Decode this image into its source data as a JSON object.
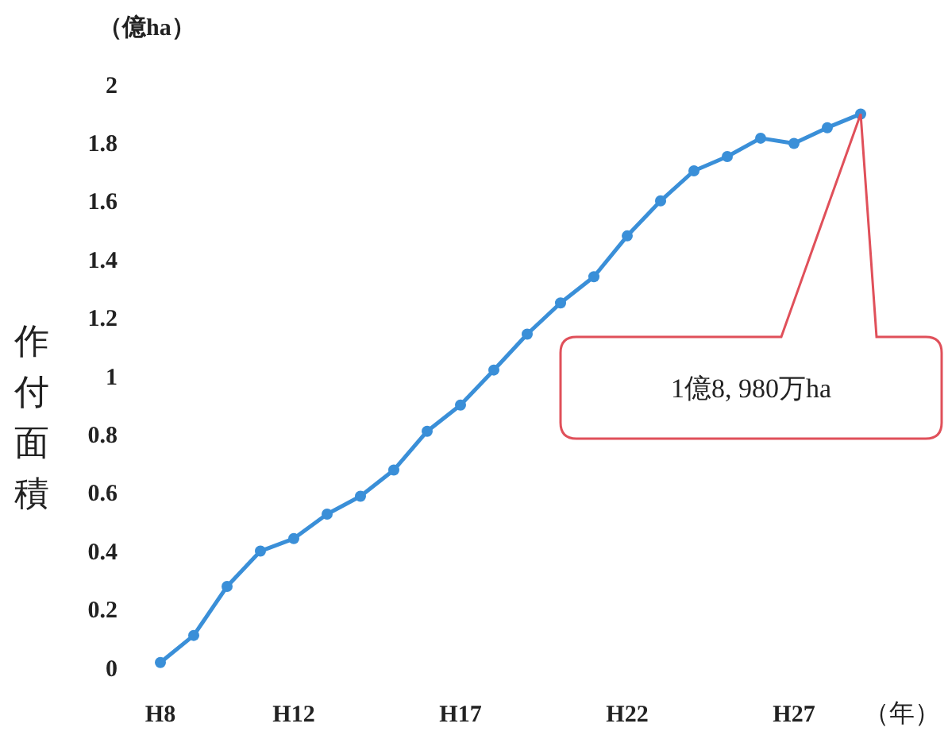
{
  "chart_data": {
    "type": "line",
    "ylabel": "作付面積",
    "xlabel": "（年）",
    "annotations": [
      "（億ha）",
      "1億8, 980万ha"
    ],
    "categories": [
      "H8",
      null,
      null,
      null,
      "H12",
      null,
      null,
      null,
      null,
      "H17",
      null,
      null,
      null,
      null,
      "H22",
      null,
      null,
      null,
      null,
      "H27",
      null,
      null
    ],
    "series": [
      {
        "color": "#3a8fd8",
        "values": [
          0.017,
          0.11,
          0.278,
          0.399,
          0.442,
          0.526,
          0.587,
          0.677,
          0.81,
          0.9,
          1.02,
          1.143,
          1.25,
          1.34,
          1.48,
          1.6,
          1.703,
          1.752,
          1.815,
          1.797,
          1.851,
          1.898
        ]
      }
    ],
    "ylim": [
      0,
      2
    ],
    "yticks": [
      0,
      0.2,
      0.4,
      0.6,
      0.8,
      1,
      1.2,
      1.4,
      1.6,
      1.8,
      2
    ],
    "grid": false,
    "marker": "circle",
    "line_style": "solid"
  }
}
